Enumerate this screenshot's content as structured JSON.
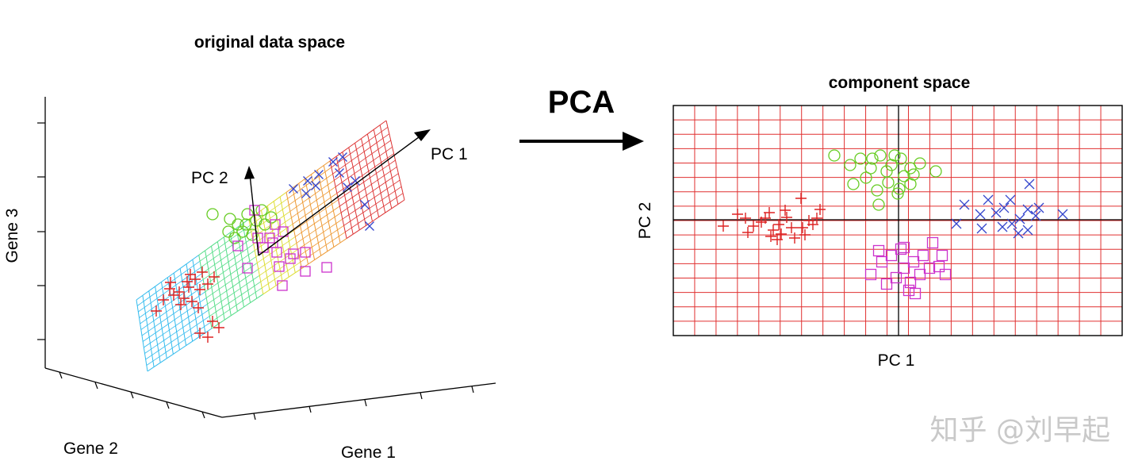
{
  "left_panel": {
    "title": "original data space",
    "axes": {
      "gene1": "Gene 1",
      "gene2": "Gene 2",
      "gene3": "Gene 3"
    },
    "vectors": {
      "pc1": "PC 1",
      "pc2": "PC 2"
    }
  },
  "transform": {
    "label": "PCA"
  },
  "right_panel": {
    "title": "component space",
    "xlabel": "PC 1",
    "ylabel": "PC 2"
  },
  "watermark": "知乎 @刘早起",
  "colors": {
    "plus": "#dd2222",
    "circle": "#66cc22",
    "square": "#cc33cc",
    "cross": "#3344cc",
    "grid": "#e03030",
    "axis": "#000000"
  },
  "legend_markers": {
    "plus": "plus-marker",
    "circle": "circle-marker",
    "square": "square-marker",
    "cross": "x-marker"
  }
}
